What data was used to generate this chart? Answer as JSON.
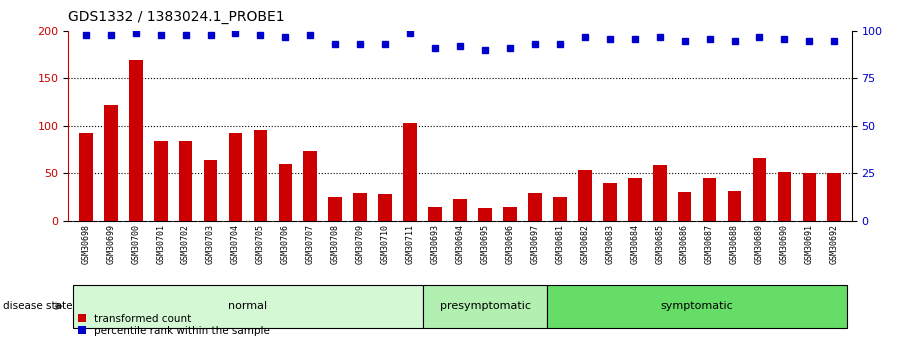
{
  "title": "GDS1332 / 1383024.1_PROBE1",
  "samples": [
    "GSM30698",
    "GSM30699",
    "GSM30700",
    "GSM30701",
    "GSM30702",
    "GSM30703",
    "GSM30704",
    "GSM30705",
    "GSM30706",
    "GSM30707",
    "GSM30708",
    "GSM30709",
    "GSM30710",
    "GSM30711",
    "GSM30693",
    "GSM30694",
    "GSM30695",
    "GSM30696",
    "GSM30697",
    "GSM30681",
    "GSM30682",
    "GSM30683",
    "GSM30684",
    "GSM30685",
    "GSM30686",
    "GSM30687",
    "GSM30688",
    "GSM30689",
    "GSM30690",
    "GSM30691",
    "GSM30692"
  ],
  "bar_values": [
    93,
    122,
    170,
    84,
    84,
    64,
    93,
    96,
    60,
    74,
    25,
    29,
    28,
    103,
    15,
    23,
    13,
    15,
    29,
    25,
    54,
    40,
    45,
    59,
    30,
    45,
    31,
    66,
    51,
    50,
    50
  ],
  "percentile_values": [
    98,
    98,
    99,
    98,
    98,
    98,
    99,
    98,
    97,
    98,
    93,
    93,
    93,
    99,
    91,
    92,
    90,
    91,
    93,
    93,
    97,
    96,
    96,
    97,
    95,
    96,
    95,
    97,
    96,
    95,
    95
  ],
  "groups": [
    {
      "name": "normal",
      "start": 0,
      "end": 13,
      "color": "#d4f7d4"
    },
    {
      "name": "presymptomatic",
      "start": 14,
      "end": 18,
      "color": "#b2f0b2"
    },
    {
      "name": "symptomatic",
      "start": 19,
      "end": 30,
      "color": "#66dd66"
    }
  ],
  "bar_color": "#cc0000",
  "percentile_color": "#0000cc",
  "left_yticks": [
    0,
    50,
    100,
    150,
    200
  ],
  "right_yticks": [
    0,
    25,
    50,
    75,
    100
  ],
  "ylim_left": [
    0,
    200
  ],
  "ylim_right": [
    0,
    100
  ],
  "background_color": "#ffffff",
  "title_fontsize": 10,
  "tick_fontsize": 6,
  "legend_labels": [
    "transformed count",
    "percentile rank within the sample"
  ],
  "disease_state_label": "disease state",
  "group_label_fontsize": 8
}
